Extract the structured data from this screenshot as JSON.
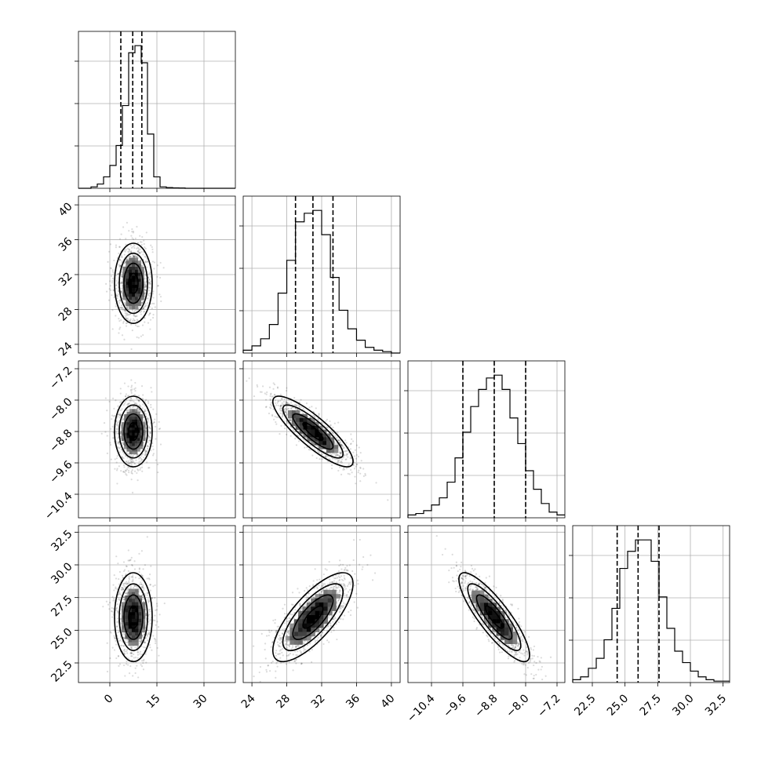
{
  "chart_data": {
    "type": "corner",
    "parameters": [
      {
        "range": [
          -10,
          40
        ],
        "ticks": [
          0,
          15,
          30
        ],
        "tick_labels": [
          "0",
          "15",
          "30"
        ],
        "mean": 7.5,
        "sd": 3.0,
        "quantiles": [
          3.5,
          7.3,
          10.2
        ],
        "histogram": {
          "edges": [
            -10,
            -8,
            -6,
            -4,
            -2,
            0,
            2,
            4,
            6,
            8,
            10,
            12,
            14,
            16,
            18,
            20,
            22,
            24,
            26,
            28,
            30,
            32,
            34,
            36,
            38,
            40
          ],
          "counts": [
            0,
            0,
            1,
            3,
            8,
            16,
            30,
            58,
            95,
            100,
            88,
            38,
            8,
            1,
            0.5,
            0.3,
            0.2,
            0,
            0,
            0,
            0,
            0,
            0,
            0,
            0
          ]
        }
      },
      {
        "range": [
          23,
          41
        ],
        "ticks": [
          24,
          28,
          32,
          36,
          40
        ],
        "tick_labels": [
          "24",
          "28",
          "32",
          "36",
          "40"
        ],
        "mean": 31.0,
        "sd": 2.3,
        "quantiles": [
          29.0,
          31.0,
          33.3
        ],
        "histogram": {
          "edges": [
            23,
            24,
            25,
            26,
            27,
            28,
            29,
            30,
            31,
            32,
            33,
            34,
            35,
            36,
            37,
            38,
            39,
            40,
            41
          ],
          "counts": [
            2,
            5,
            10,
            20,
            42,
            65,
            92,
            98,
            100,
            83,
            53,
            30,
            17,
            9,
            4,
            2,
            1,
            0
          ]
        }
      },
      {
        "range": [
          -11,
          -7
        ],
        "ticks": [
          -10.4,
          -9.6,
          -8.8,
          -8.0,
          -7.2
        ],
        "tick_labels": [
          "−10.4",
          "−9.6",
          "−8.8",
          "−8.0",
          "−7.2"
        ],
        "mean": -8.8,
        "sd": 0.45,
        "quantiles": [
          -9.6,
          -8.8,
          -8.0
        ],
        "histogram": {
          "edges": [
            -11.0,
            -10.8,
            -10.6,
            -10.4,
            -10.2,
            -10.0,
            -9.8,
            -9.6,
            -9.4,
            -9.2,
            -9.0,
            -8.8,
            -8.6,
            -8.4,
            -8.2,
            -8.0,
            -7.8,
            -7.6,
            -7.4,
            -7.2,
            -7.0
          ],
          "counts": [
            2,
            3,
            5,
            9,
            14,
            25,
            42,
            60,
            78,
            90,
            98,
            100,
            90,
            70,
            52,
            33,
            20,
            10,
            4,
            2
          ]
        }
      },
      {
        "range": [
          21,
          33
        ],
        "ticks": [
          22.5,
          25.0,
          27.5,
          30.0,
          32.5
        ],
        "tick_labels": [
          "22.5",
          "25.0",
          "27.5",
          "30.0",
          "32.5"
        ],
        "mean": 26.0,
        "sd": 1.7,
        "quantiles": [
          24.4,
          26.0,
          27.6
        ],
        "histogram": {
          "edges": [
            21.0,
            21.6,
            22.2,
            22.8,
            23.4,
            24.0,
            24.6,
            25.2,
            25.8,
            26.4,
            27.0,
            27.6,
            28.2,
            28.8,
            29.4,
            30.0,
            30.6,
            31.2,
            31.8,
            32.4,
            33.0
          ],
          "counts": [
            2,
            4,
            10,
            17,
            30,
            52,
            80,
            92,
            100,
            100,
            85,
            60,
            38,
            22,
            14,
            8,
            4,
            2,
            1,
            1
          ]
        }
      }
    ],
    "correlations": [
      [
        1.0,
        0.0,
        0.0,
        0.0
      ],
      [
        0.0,
        1.0,
        -0.85,
        0.75
      ],
      [
        0.0,
        -0.85,
        1.0,
        -0.85
      ],
      [
        0.0,
        0.75,
        -0.85,
        1.0
      ]
    ],
    "grid": true,
    "histogram_y_labels": false
  }
}
